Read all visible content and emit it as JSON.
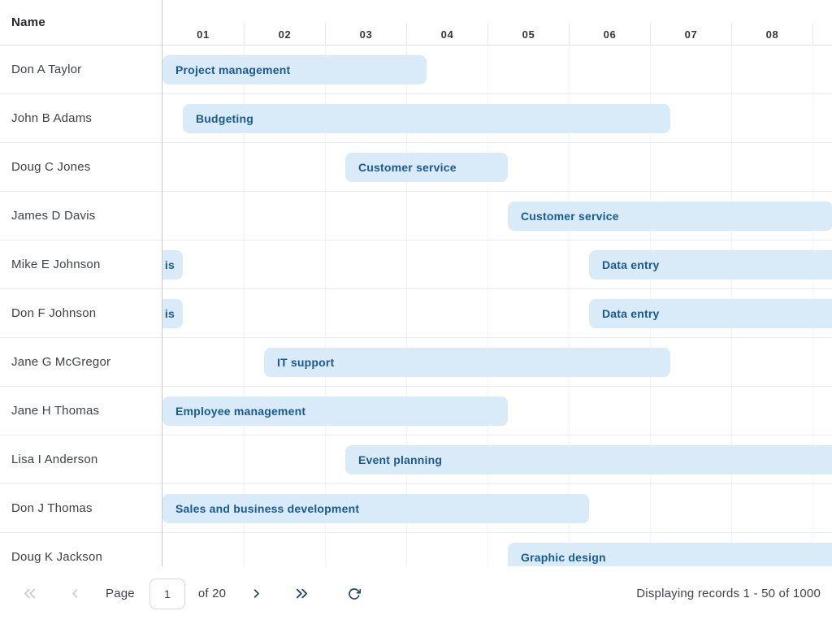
{
  "grid": {
    "name_column_header": "Name",
    "timeline_columns": [
      "01",
      "02",
      "03",
      "04",
      "05",
      "06",
      "07",
      "08",
      ""
    ],
    "rows": [
      {
        "name": "Don A Taylor",
        "bars": [
          {
            "label": "Project management",
            "start": 0,
            "end": 3.25
          }
        ]
      },
      {
        "name": "John B Adams",
        "bars": [
          {
            "label": "Budgeting",
            "start": 0.25,
            "end": 6.25
          }
        ]
      },
      {
        "name": "Doug C Jones",
        "bars": [
          {
            "label": "Customer service",
            "start": 2.25,
            "end": 4.25
          }
        ]
      },
      {
        "name": "James D Davis",
        "bars": [
          {
            "label": "Customer service",
            "start": 4.25,
            "end": 8.25
          }
        ]
      },
      {
        "name": "Mike E Johnson",
        "bars": [
          {
            "label": "is",
            "start": -0.95,
            "end": 0.25,
            "align": "right"
          },
          {
            "label": "Data entry",
            "start": 5.25,
            "end": 10.3
          }
        ]
      },
      {
        "name": "Don F Johnson",
        "bars": [
          {
            "label": "is",
            "start": -0.95,
            "end": 0.25,
            "align": "right"
          },
          {
            "label": "Data entry",
            "start": 5.25,
            "end": 10.3
          }
        ]
      },
      {
        "name": "Jane G McGregor",
        "bars": [
          {
            "label": "IT support",
            "start": 1.25,
            "end": 6.25
          }
        ]
      },
      {
        "name": "Jane H Thomas",
        "bars": [
          {
            "label": "Employee management",
            "start": 0,
            "end": 4.25
          }
        ]
      },
      {
        "name": "Lisa I Anderson",
        "bars": [
          {
            "label": "Event planning",
            "start": 2.25,
            "end": 10.3
          }
        ]
      },
      {
        "name": "Don J Thomas",
        "bars": [
          {
            "label": "Sales and business development",
            "start": 0,
            "end": 5.25
          }
        ]
      },
      {
        "name": "Doug K Jackson",
        "bars": [
          {
            "label": "Graphic design",
            "start": 4.25,
            "end": 10.3
          }
        ]
      }
    ]
  },
  "pagination": {
    "page_label": "Page",
    "page_value": "1",
    "of_label": "of 20",
    "status": "Displaying records 1 - 50 of 1000",
    "icons": {
      "first": "double-chevron-left",
      "prev": "chevron-left",
      "next": "chevron-right",
      "last": "double-chevron-right",
      "refresh": "refresh-arrow"
    }
  },
  "colors": {
    "bar_fill": "#d9eaf9",
    "bar_text": "#1a5a94",
    "nav_active": "#1e4670",
    "nav_disabled": "#c7ccd0"
  }
}
